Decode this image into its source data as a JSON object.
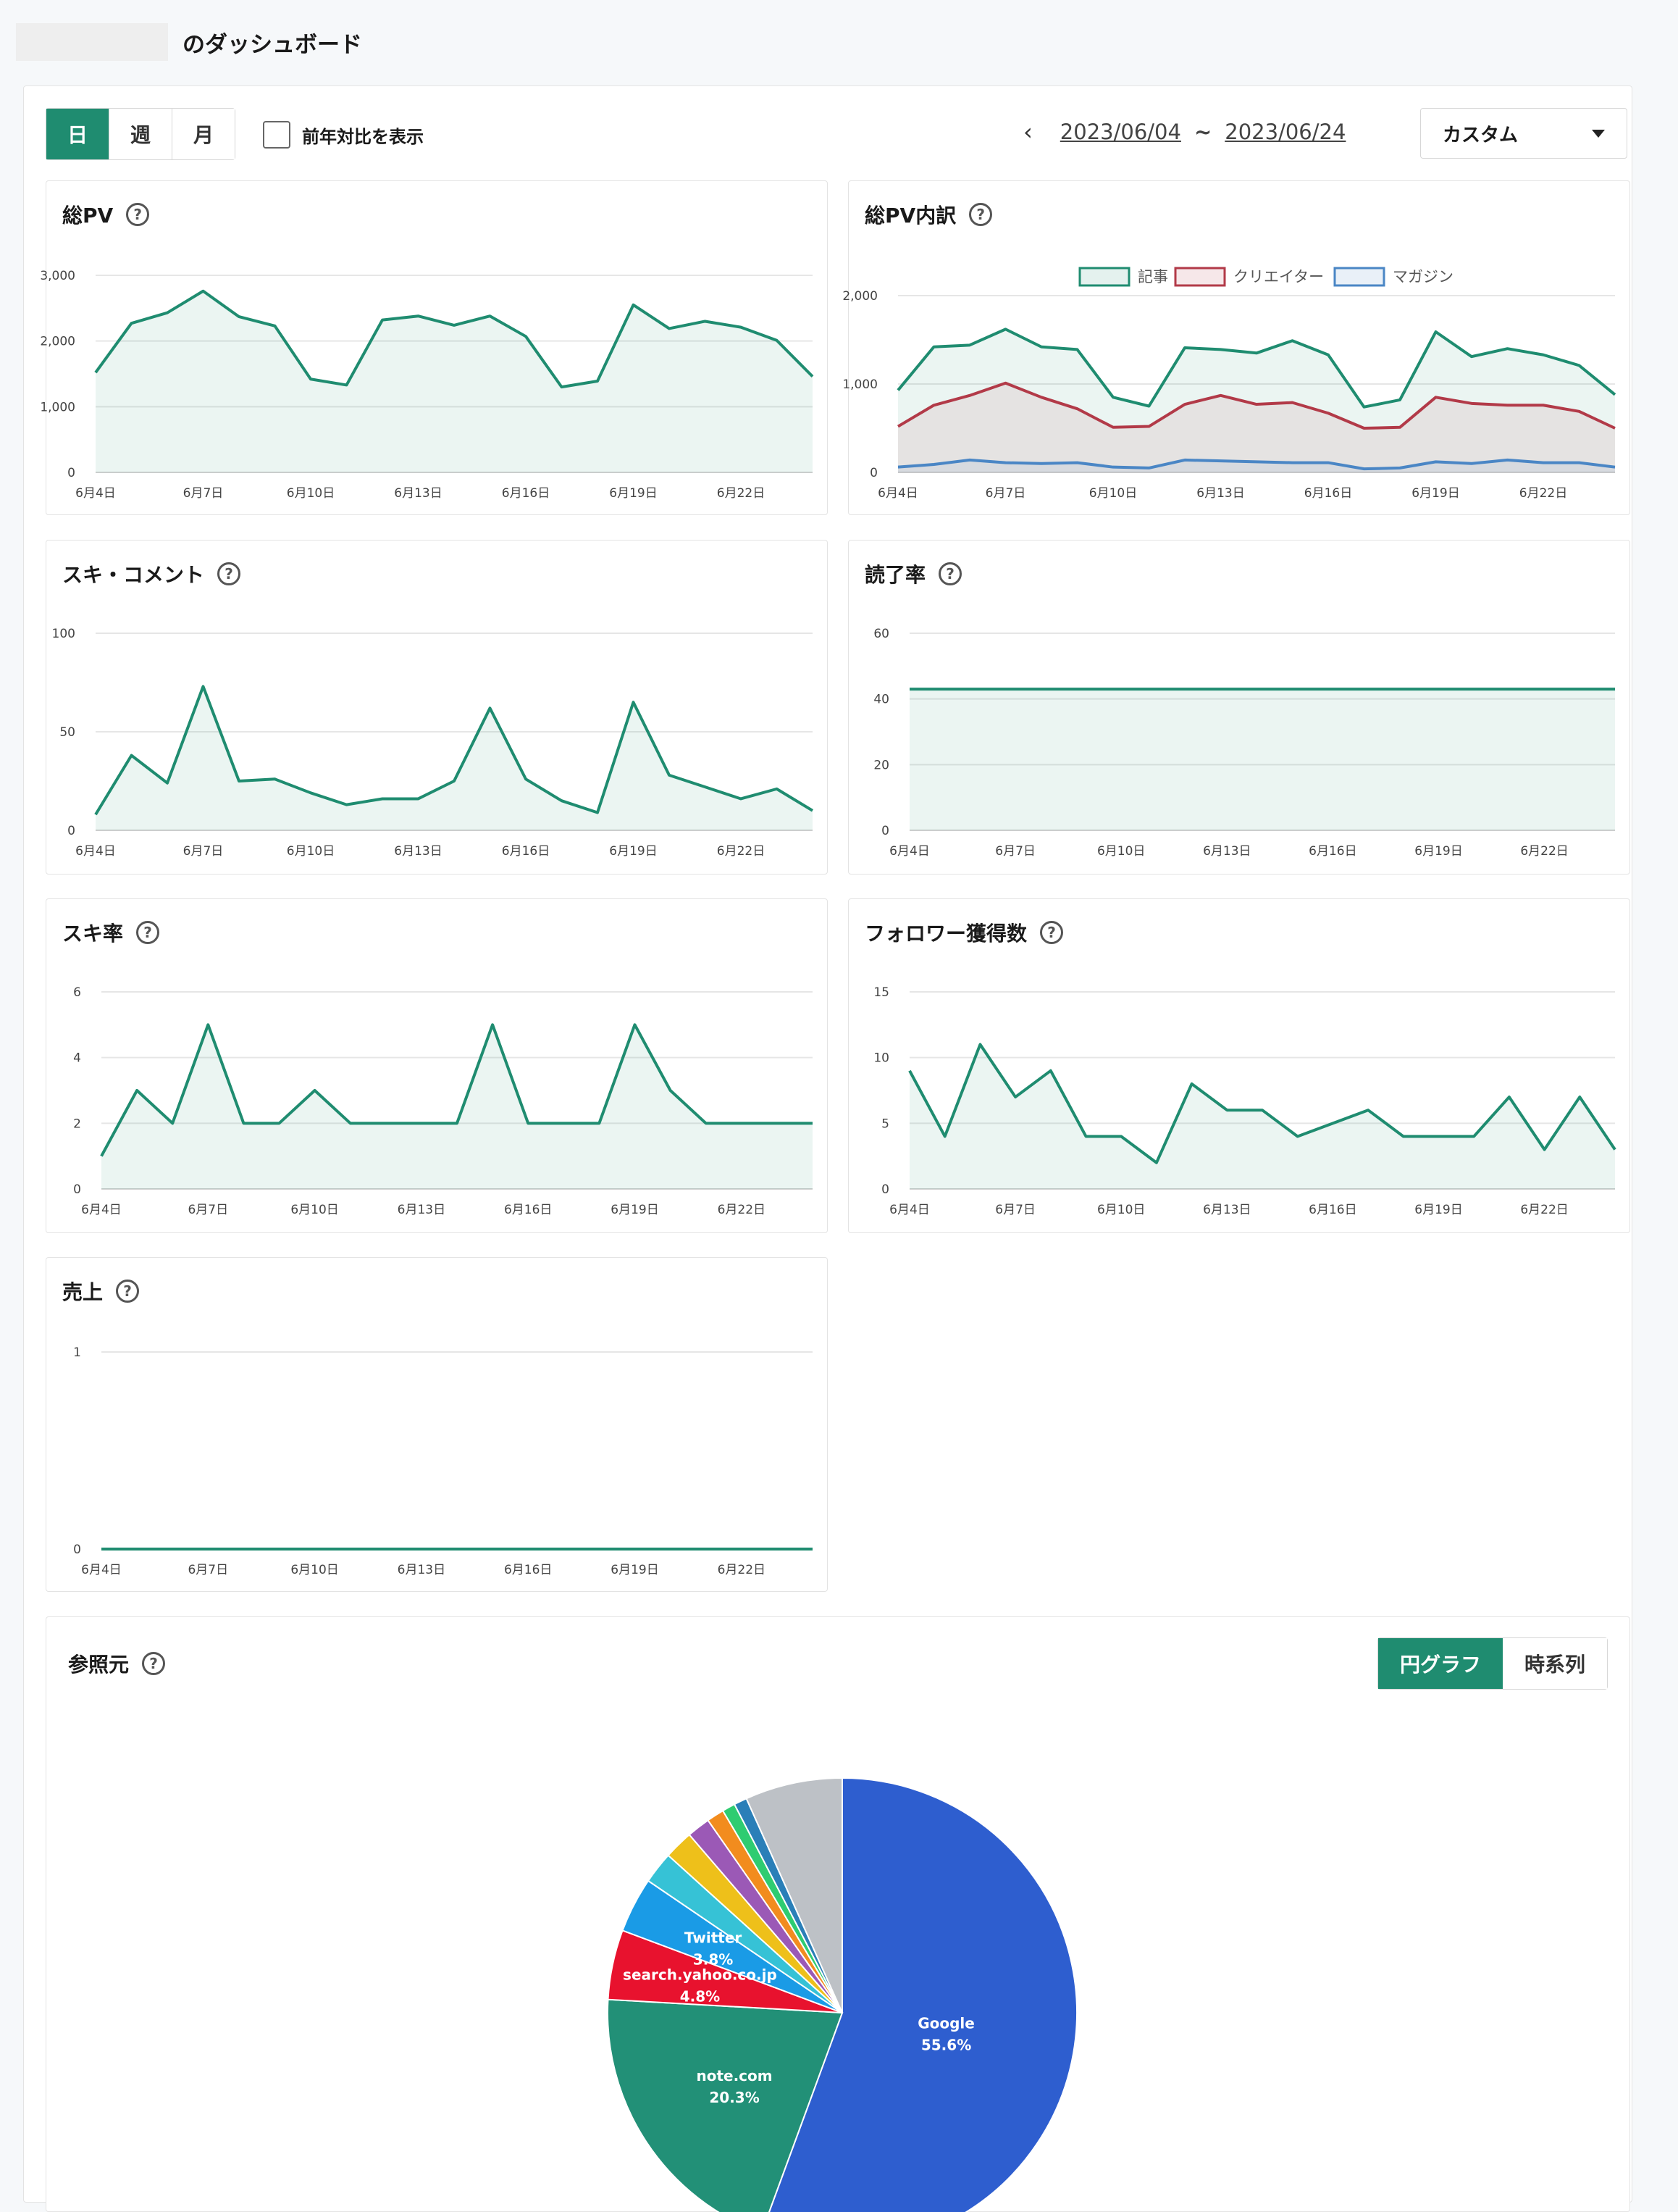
{
  "page": {
    "title": "のダッシュボード"
  },
  "toolbar": {
    "period_buttons": [
      "日",
      "週",
      "月"
    ],
    "compare_label": "前年対比を表示",
    "date_from": "2023/06/04",
    "tilde": "~",
    "date_to": "2023/06/24",
    "range_select": "カスタム"
  },
  "referrers": {
    "title": "参照元",
    "toggle": [
      "円グラフ",
      "時系列"
    ]
  },
  "colors": {
    "green": "#1f8c70",
    "red": "#b23a48",
    "blue": "#4a86c5",
    "grid": "#e6e6e6"
  },
  "chart_data": [
    {
      "id": "total-pv",
      "type": "area",
      "title": "総PV",
      "x_ticks": [
        "6月4日",
        "6月7日",
        "6月10日",
        "6月13日",
        "6月16日",
        "6月19日",
        "6月22日"
      ],
      "ylim": [
        0,
        3000
      ],
      "y_ticks": [
        "0",
        "1,000",
        "2,000",
        "3,000"
      ],
      "series": [
        {
          "values": [
            1520,
            2270,
            2430,
            2760,
            2370,
            2230,
            1420,
            1330,
            2320,
            2380,
            2240,
            2380,
            2070,
            1300,
            1390,
            2550,
            2190,
            2300,
            2210,
            2010,
            1460
          ],
          "color": "#1f8c70"
        }
      ]
    },
    {
      "id": "pv-breakdown",
      "type": "area",
      "title": "総PV内訳",
      "x_ticks": [
        "6月4日",
        "6月7日",
        "6月10日",
        "6月13日",
        "6月16日",
        "6月19日",
        "6月22日"
      ],
      "ylim": [
        0,
        2000
      ],
      "y_ticks": [
        "0",
        "1,000",
        "2,000"
      ],
      "legend": [
        "記事",
        "クリエイター",
        "マガジン"
      ],
      "series": [
        {
          "name": "記事",
          "color": "#1f8c70",
          "values": [
            930,
            1420,
            1440,
            1620,
            1420,
            1390,
            850,
            750,
            1410,
            1390,
            1350,
            1490,
            1330,
            740,
            820,
            1590,
            1310,
            1400,
            1330,
            1210,
            880
          ]
        },
        {
          "name": "クリエイター",
          "color": "#b23a48",
          "values": [
            520,
            760,
            870,
            1010,
            850,
            720,
            510,
            520,
            770,
            870,
            770,
            790,
            670,
            500,
            510,
            850,
            780,
            760,
            760,
            690,
            500
          ]
        },
        {
          "name": "マガジン",
          "color": "#4a86c5",
          "values": [
            60,
            90,
            140,
            110,
            100,
            110,
            60,
            50,
            140,
            130,
            120,
            110,
            110,
            40,
            50,
            120,
            100,
            140,
            110,
            110,
            60
          ]
        }
      ]
    },
    {
      "id": "likes-comments",
      "type": "area",
      "title": "スキ・コメント",
      "x_ticks": [
        "6月4日",
        "6月7日",
        "6月10日",
        "6月13日",
        "6月16日",
        "6月19日",
        "6月22日"
      ],
      "ylim": [
        0,
        100
      ],
      "y_ticks": [
        "0",
        "50",
        "100"
      ],
      "series": [
        {
          "values": [
            8,
            38,
            24,
            73,
            25,
            26,
            19,
            13,
            16,
            16,
            25,
            62,
            26,
            15,
            9,
            65,
            28,
            22,
            16,
            21,
            10
          ],
          "color": "#1f8c70"
        }
      ]
    },
    {
      "id": "read-rate",
      "type": "area",
      "title": "読了率",
      "x_ticks": [
        "6月4日",
        "6月7日",
        "6月10日",
        "6月13日",
        "6月16日",
        "6月19日",
        "6月22日"
      ],
      "ylim": [
        0,
        60
      ],
      "y_ticks": [
        "0",
        "20",
        "40",
        "60"
      ],
      "series": [
        {
          "values": [
            43,
            43,
            43,
            43,
            43,
            43,
            43,
            43,
            43,
            43,
            43,
            43,
            43,
            43,
            43,
            43,
            43,
            43,
            43,
            43,
            43
          ],
          "color": "#1f8c70"
        }
      ]
    },
    {
      "id": "like-rate",
      "type": "area",
      "title": "スキ率",
      "x_ticks": [
        "6月4日",
        "6月7日",
        "6月10日",
        "6月13日",
        "6月16日",
        "6月19日",
        "6月22日"
      ],
      "ylim": [
        0,
        6
      ],
      "y_ticks": [
        "0",
        "2",
        "4",
        "6"
      ],
      "series": [
        {
          "values": [
            1,
            3,
            2,
            5,
            2,
            2,
            3,
            2,
            2,
            2,
            2,
            5,
            2,
            2,
            2,
            5,
            3,
            2,
            2,
            2,
            2
          ],
          "color": "#1f8c70"
        }
      ]
    },
    {
      "id": "followers",
      "type": "area",
      "title": "フォロワー獲得数",
      "x_ticks": [
        "6月4日",
        "6月7日",
        "6月10日",
        "6月13日",
        "6月16日",
        "6月19日",
        "6月22日"
      ],
      "ylim": [
        0,
        15
      ],
      "y_ticks": [
        "0",
        "5",
        "10",
        "15"
      ],
      "series": [
        {
          "values": [
            9,
            4,
            11,
            7,
            9,
            4,
            4,
            2,
            8,
            6,
            6,
            4,
            5,
            6,
            4,
            4,
            4,
            7,
            3,
            7,
            3
          ],
          "color": "#1f8c70"
        }
      ]
    },
    {
      "id": "sales",
      "type": "line",
      "title": "売上",
      "x_ticks": [
        "6月4日",
        "6月7日",
        "6月10日",
        "6月13日",
        "6月16日",
        "6月19日",
        "6月22日"
      ],
      "ylim": [
        0,
        1
      ],
      "y_ticks": [
        "0",
        "1"
      ],
      "series": [
        {
          "values": [
            0,
            0,
            0,
            0,
            0,
            0,
            0,
            0,
            0,
            0,
            0,
            0,
            0,
            0,
            0,
            0,
            0,
            0,
            0,
            0,
            0
          ],
          "color": "#1f8c70"
        }
      ]
    },
    {
      "id": "referrer-pie",
      "type": "pie",
      "slices": [
        {
          "label": "Google",
          "pct_text": "55.6%",
          "value": 55.6,
          "color": "#2e5ecf",
          "show_label": true
        },
        {
          "label": "note.com",
          "pct_text": "20.3%",
          "value": 20.3,
          "color": "#229077",
          "show_label": true
        },
        {
          "label": "search.yahoo.co.jp",
          "pct_text": "4.8%",
          "value": 4.8,
          "color": "#e8122e",
          "show_label": true
        },
        {
          "label": "Twitter",
          "pct_text": "3.8%",
          "value": 3.8,
          "color": "#1a9be6",
          "show_label": true
        },
        {
          "value": 2.2,
          "color": "#36c2d6"
        },
        {
          "value": 2.0,
          "color": "#eec01a"
        },
        {
          "value": 1.6,
          "color": "#9b59b6"
        },
        {
          "value": 1.2,
          "color": "#f28c1e"
        },
        {
          "value": 0.9,
          "color": "#2ecc71"
        },
        {
          "value": 0.9,
          "color": "#2a7fb8"
        },
        {
          "value": 6.7,
          "color": "#bdc1c6"
        }
      ]
    }
  ]
}
